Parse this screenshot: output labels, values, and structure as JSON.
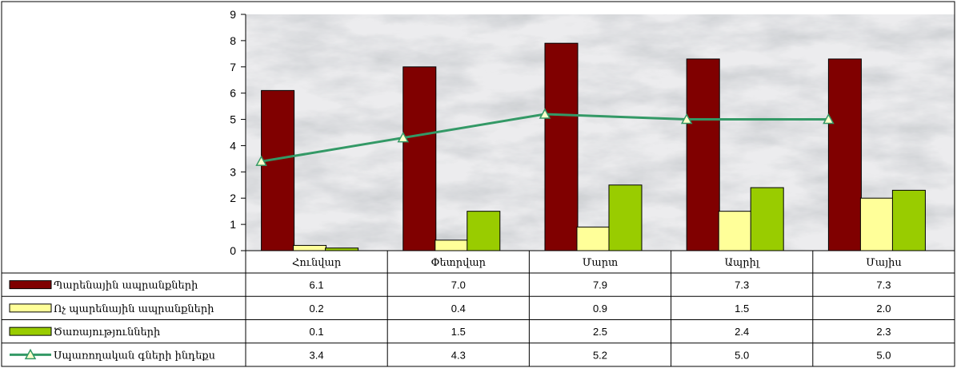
{
  "chart_data": {
    "type": "bar",
    "categories": [
      "Հունվար",
      "Փետրվար",
      "Մարտ",
      "Ապրիլ",
      "Մայիս"
    ],
    "ylim": [
      0,
      9
    ],
    "yticks": [
      0,
      1,
      2,
      3,
      4,
      5,
      6,
      7,
      8,
      9
    ],
    "grid": false,
    "legend_placement": "data-table",
    "series": [
      {
        "name": "Պարենային ապրանքների",
        "type": "bar",
        "color": "#800000",
        "values": [
          6.1,
          7.0,
          7.9,
          7.3,
          7.3
        ],
        "labels": [
          "6.1",
          "7.0",
          "7.9",
          "7.3",
          "7.3"
        ]
      },
      {
        "name": "Ոչ պարենային ապրանքների",
        "type": "bar",
        "color": "#ffff99",
        "values": [
          0.2,
          0.4,
          0.9,
          1.5,
          2.0
        ],
        "labels": [
          "0.2",
          "0.4",
          "0.9",
          "1.5",
          "2.0"
        ]
      },
      {
        "name": "Ծառայությունների",
        "type": "bar",
        "color": "#99cc00",
        "values": [
          0.1,
          1.5,
          2.5,
          2.4,
          2.3
        ],
        "labels": [
          "0.1",
          "1.5",
          "2.5",
          "2.4",
          "2.3"
        ]
      },
      {
        "name": "Սպառողական գների ինդեքս",
        "type": "line",
        "marker": "triangle",
        "color": "#339966",
        "values": [
          3.4,
          4.3,
          5.2,
          5.0,
          5.0
        ],
        "labels": [
          "3.4",
          "4.3",
          "5.2",
          "5.0",
          "5.0"
        ]
      }
    ]
  }
}
